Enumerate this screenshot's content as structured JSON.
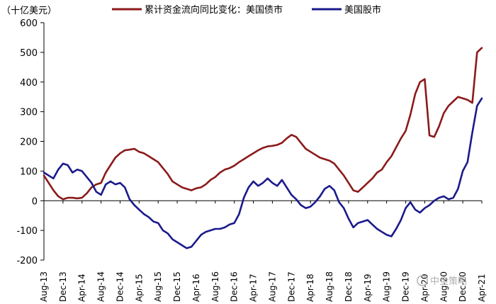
{
  "chart_data": {
    "type": "line",
    "unit_label": "（十亿美元）",
    "ylim": [
      -200,
      600
    ],
    "yticks": [
      -200,
      -100,
      0,
      100,
      200,
      300,
      400,
      500,
      600
    ],
    "x_tick_labels": [
      "Aug-13",
      "Dec-13",
      "Apr-14",
      "Aug-14",
      "Dec-14",
      "Apr-15",
      "Aug-15",
      "Dec-15",
      "Apr-16",
      "Aug-16",
      "Dec-16",
      "Apr-17",
      "Aug-17",
      "Dec-17",
      "Apr-18",
      "Aug-18",
      "Dec-18",
      "Apr-19",
      "Aug-19",
      "Dec-19",
      "Apr-20",
      "Aug-20",
      "Dec-20",
      "Apr-21"
    ],
    "x_start": "2013-08",
    "x_end": "2021-04",
    "series": [
      {
        "name": "累计资金流向同比变化：美国债市",
        "color": "#8b1a1a",
        "points": [
          [
            "2013-08",
            85
          ],
          [
            "2013-09",
            60
          ],
          [
            "2013-10",
            35
          ],
          [
            "2013-11",
            15
          ],
          [
            "2013-12",
            5
          ],
          [
            "2014-01",
            10
          ],
          [
            "2014-02",
            10
          ],
          [
            "2014-03",
            8
          ],
          [
            "2014-04",
            10
          ],
          [
            "2014-05",
            25
          ],
          [
            "2014-06",
            45
          ],
          [
            "2014-07",
            55
          ],
          [
            "2014-08",
            60
          ],
          [
            "2014-09",
            95
          ],
          [
            "2014-10",
            120
          ],
          [
            "2014-11",
            145
          ],
          [
            "2014-12",
            160
          ],
          [
            "2015-01",
            170
          ],
          [
            "2015-02",
            172
          ],
          [
            "2015-03",
            175
          ],
          [
            "2015-04",
            165
          ],
          [
            "2015-05",
            160
          ],
          [
            "2015-06",
            150
          ],
          [
            "2015-07",
            140
          ],
          [
            "2015-08",
            130
          ],
          [
            "2015-09",
            110
          ],
          [
            "2015-10",
            90
          ],
          [
            "2015-11",
            65
          ],
          [
            "2015-12",
            55
          ],
          [
            "2016-01",
            45
          ],
          [
            "2016-02",
            40
          ],
          [
            "2016-03",
            35
          ],
          [
            "2016-04",
            42
          ],
          [
            "2016-05",
            45
          ],
          [
            "2016-06",
            55
          ],
          [
            "2016-07",
            70
          ],
          [
            "2016-08",
            80
          ],
          [
            "2016-09",
            95
          ],
          [
            "2016-10",
            105
          ],
          [
            "2016-11",
            110
          ],
          [
            "2016-12",
            118
          ],
          [
            "2017-01",
            130
          ],
          [
            "2017-02",
            140
          ],
          [
            "2017-03",
            150
          ],
          [
            "2017-04",
            160
          ],
          [
            "2017-05",
            170
          ],
          [
            "2017-06",
            178
          ],
          [
            "2017-07",
            183
          ],
          [
            "2017-08",
            185
          ],
          [
            "2017-09",
            188
          ],
          [
            "2017-10",
            195
          ],
          [
            "2017-11",
            210
          ],
          [
            "2017-12",
            222
          ],
          [
            "2018-01",
            215
          ],
          [
            "2018-02",
            195
          ],
          [
            "2018-03",
            175
          ],
          [
            "2018-04",
            165
          ],
          [
            "2018-05",
            155
          ],
          [
            "2018-06",
            145
          ],
          [
            "2018-07",
            140
          ],
          [
            "2018-08",
            135
          ],
          [
            "2018-09",
            125
          ],
          [
            "2018-10",
            105
          ],
          [
            "2018-11",
            85
          ],
          [
            "2018-12",
            60
          ],
          [
            "2019-01",
            35
          ],
          [
            "2019-02",
            30
          ],
          [
            "2019-03",
            45
          ],
          [
            "2019-04",
            60
          ],
          [
            "2019-05",
            75
          ],
          [
            "2019-06",
            95
          ],
          [
            "2019-07",
            105
          ],
          [
            "2019-08",
            130
          ],
          [
            "2019-09",
            150
          ],
          [
            "2019-10",
            180
          ],
          [
            "2019-11",
            210
          ],
          [
            "2019-12",
            235
          ],
          [
            "2020-01",
            290
          ],
          [
            "2020-02",
            360
          ],
          [
            "2020-03",
            400
          ],
          [
            "2020-04",
            410
          ],
          [
            "2020-05",
            220
          ],
          [
            "2020-06",
            215
          ],
          [
            "2020-07",
            250
          ],
          [
            "2020-08",
            295
          ],
          [
            "2020-09",
            320
          ],
          [
            "2020-10",
            335
          ],
          [
            "2020-11",
            350
          ],
          [
            "2020-12",
            345
          ],
          [
            "2021-01",
            340
          ],
          [
            "2021-02",
            330
          ],
          [
            "2021-03",
            500
          ],
          [
            "2021-04",
            515
          ]
        ]
      },
      {
        "name": "美国股市",
        "color": "#1a1a8c",
        "points": [
          [
            "2013-08",
            95
          ],
          [
            "2013-09",
            85
          ],
          [
            "2013-10",
            75
          ],
          [
            "2013-11",
            105
          ],
          [
            "2013-12",
            125
          ],
          [
            "2014-01",
            120
          ],
          [
            "2014-02",
            95
          ],
          [
            "2014-03",
            105
          ],
          [
            "2014-04",
            100
          ],
          [
            "2014-05",
            80
          ],
          [
            "2014-06",
            60
          ],
          [
            "2014-07",
            30
          ],
          [
            "2014-08",
            20
          ],
          [
            "2014-09",
            55
          ],
          [
            "2014-10",
            65
          ],
          [
            "2014-11",
            55
          ],
          [
            "2014-12",
            60
          ],
          [
            "2015-01",
            45
          ],
          [
            "2015-02",
            5
          ],
          [
            "2015-03",
            -15
          ],
          [
            "2015-04",
            -30
          ],
          [
            "2015-05",
            -45
          ],
          [
            "2015-06",
            -55
          ],
          [
            "2015-07",
            -70
          ],
          [
            "2015-08",
            -75
          ],
          [
            "2015-09",
            -100
          ],
          [
            "2015-10",
            -110
          ],
          [
            "2015-11",
            -130
          ],
          [
            "2015-12",
            -140
          ],
          [
            "2016-01",
            -150
          ],
          [
            "2016-02",
            -160
          ],
          [
            "2016-03",
            -155
          ],
          [
            "2016-04",
            -135
          ],
          [
            "2016-05",
            -115
          ],
          [
            "2016-06",
            -105
          ],
          [
            "2016-07",
            -100
          ],
          [
            "2016-08",
            -95
          ],
          [
            "2016-09",
            -95
          ],
          [
            "2016-10",
            -90
          ],
          [
            "2016-11",
            -80
          ],
          [
            "2016-12",
            -75
          ],
          [
            "2017-01",
            -45
          ],
          [
            "2017-02",
            10
          ],
          [
            "2017-03",
            45
          ],
          [
            "2017-04",
            65
          ],
          [
            "2017-05",
            50
          ],
          [
            "2017-06",
            60
          ],
          [
            "2017-07",
            75
          ],
          [
            "2017-08",
            60
          ],
          [
            "2017-09",
            50
          ],
          [
            "2017-10",
            70
          ],
          [
            "2017-11",
            45
          ],
          [
            "2017-12",
            20
          ],
          [
            "2018-01",
            5
          ],
          [
            "2018-02",
            -15
          ],
          [
            "2018-03",
            -25
          ],
          [
            "2018-04",
            -20
          ],
          [
            "2018-05",
            -5
          ],
          [
            "2018-06",
            15
          ],
          [
            "2018-07",
            40
          ],
          [
            "2018-08",
            50
          ],
          [
            "2018-09",
            35
          ],
          [
            "2018-10",
            -5
          ],
          [
            "2018-11",
            -25
          ],
          [
            "2018-12",
            -60
          ],
          [
            "2019-01",
            -90
          ],
          [
            "2019-02",
            -75
          ],
          [
            "2019-03",
            -70
          ],
          [
            "2019-04",
            -65
          ],
          [
            "2019-05",
            -80
          ],
          [
            "2019-06",
            -95
          ],
          [
            "2019-07",
            -105
          ],
          [
            "2019-08",
            -115
          ],
          [
            "2019-09",
            -120
          ],
          [
            "2019-10",
            -95
          ],
          [
            "2019-11",
            -65
          ],
          [
            "2019-12",
            -25
          ],
          [
            "2020-01",
            -5
          ],
          [
            "2020-02",
            -30
          ],
          [
            "2020-03",
            -40
          ],
          [
            "2020-04",
            -25
          ],
          [
            "2020-05",
            -15
          ],
          [
            "2020-06",
            0
          ],
          [
            "2020-07",
            10
          ],
          [
            "2020-08",
            15
          ],
          [
            "2020-09",
            5
          ],
          [
            "2020-10",
            10
          ],
          [
            "2020-11",
            40
          ],
          [
            "2020-12",
            100
          ],
          [
            "2021-01",
            130
          ],
          [
            "2021-02",
            230
          ],
          [
            "2021-03",
            320
          ],
          [
            "2021-04",
            345
          ]
        ]
      }
    ],
    "watermark": "中金策略"
  },
  "colors": {
    "axis": "#000000"
  }
}
